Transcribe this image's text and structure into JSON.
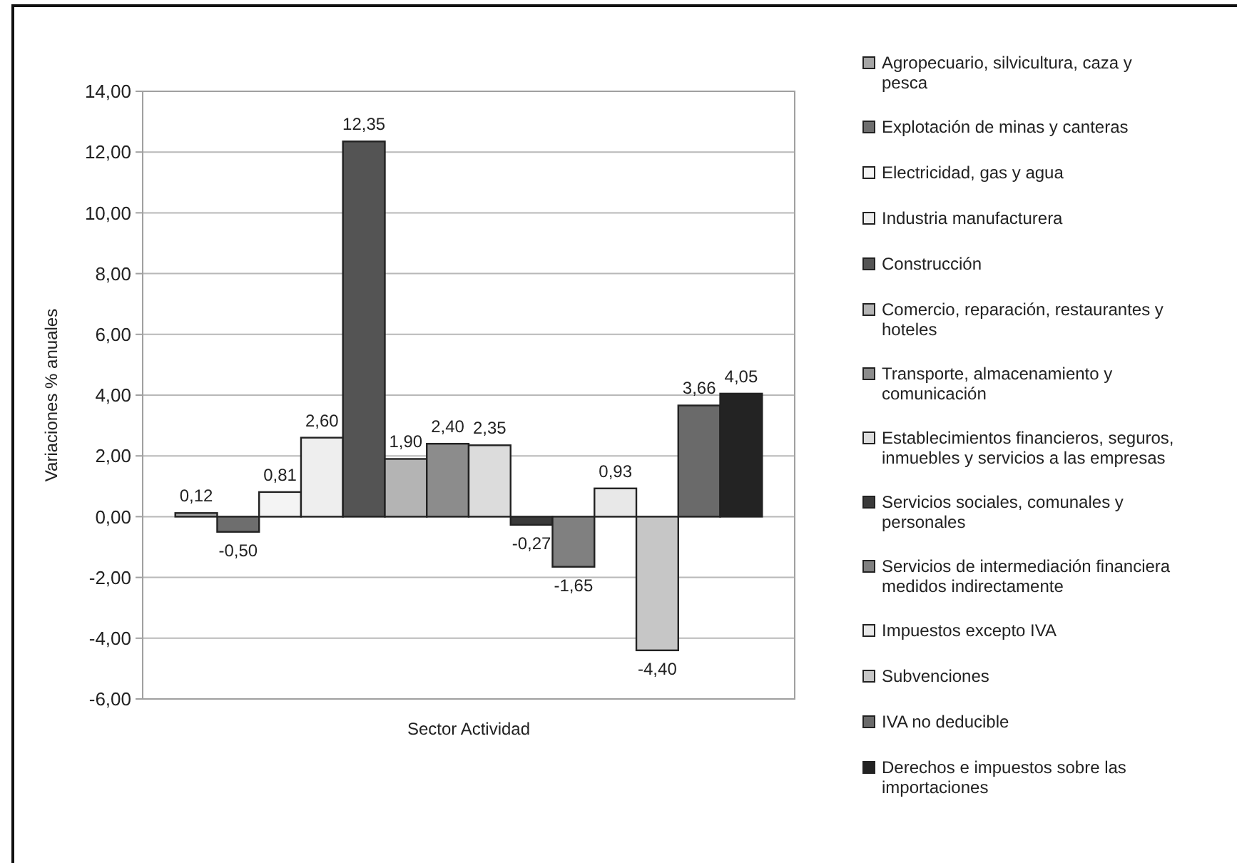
{
  "chart_data": {
    "type": "bar",
    "xlabel": "Sector Actividad",
    "ylabel": "Variaciones % anuales",
    "categories": [
      null
    ],
    "series": [
      {
        "name": "Agropecuario, silvicultura, caza y pesca",
        "color": "#a6a6a6",
        "values": [
          0.12
        ],
        "value_labels": [
          "0,12"
        ]
      },
      {
        "name": "Explotación de minas y canteras",
        "color": "#6e6e6e",
        "values": [
          -0.5
        ],
        "value_labels": [
          "-0,50"
        ]
      },
      {
        "name": "Electricidad, gas y agua",
        "color": "#f4f4f4",
        "values": [
          0.81
        ],
        "value_labels": [
          "0,81"
        ]
      },
      {
        "name": "Industria manufacturera",
        "color": "#eeeeee",
        "values": [
          2.6
        ],
        "value_labels": [
          "2,60"
        ]
      },
      {
        "name": "Construcción",
        "color": "#545454",
        "values": [
          12.35
        ],
        "value_labels": [
          "12,35"
        ]
      },
      {
        "name": "Comercio, reparación, restaurantes y hoteles",
        "color": "#b4b4b4",
        "values": [
          1.9
        ],
        "value_labels": [
          "1,90"
        ]
      },
      {
        "name": "Transporte, almacenamiento y comunicación",
        "color": "#8c8c8c",
        "values": [
          2.4
        ],
        "value_labels": [
          "2,40"
        ]
      },
      {
        "name": "Establecimientos financieros, seguros, inmuebles y servicios a las empresas",
        "color": "#dcdcdc",
        "values": [
          2.35
        ],
        "value_labels": [
          "2,35"
        ]
      },
      {
        "name": "Servicios sociales, comunales y personales",
        "color": "#3a3a3a",
        "values": [
          -0.27
        ],
        "value_labels": [
          "-0,27"
        ]
      },
      {
        "name": "Servicios de intermediación financiera medidos indirectamente",
        "color": "#808080",
        "values": [
          -1.65
        ],
        "value_labels": [
          "-1,65"
        ]
      },
      {
        "name": "Impuestos excepto IVA",
        "color": "#e8e8e8",
        "values": [
          0.93
        ],
        "value_labels": [
          "0,93"
        ]
      },
      {
        "name": "Subvenciones",
        "color": "#c6c6c6",
        "values": [
          -4.4
        ],
        "value_labels": [
          "-4,40"
        ]
      },
      {
        "name": "IVA no deducible",
        "color": "#6a6a6a",
        "values": [
          3.66
        ],
        "value_labels": [
          "3,66"
        ]
      },
      {
        "name": "Derechos e impuestos sobre las importaciones",
        "color": "#232323",
        "values": [
          4.05
        ],
        "value_labels": [
          "4,05"
        ]
      }
    ],
    "ylim": [
      -6,
      14
    ],
    "yticks": [
      {
        "value": -6,
        "label": "-6,00"
      },
      {
        "value": -4,
        "label": "-4,00"
      },
      {
        "value": -2,
        "label": "-2,00"
      },
      {
        "value": 0,
        "label": "0,00"
      },
      {
        "value": 2,
        "label": "2,00"
      },
      {
        "value": 4,
        "label": "4,00"
      },
      {
        "value": 6,
        "label": "6,00"
      },
      {
        "value": 8,
        "label": "8,00"
      },
      {
        "value": 10,
        "label": "10,00"
      },
      {
        "value": 12,
        "label": "12,00"
      },
      {
        "value": 14,
        "label": "14,00"
      }
    ],
    "grid": "y",
    "legend": "right"
  }
}
